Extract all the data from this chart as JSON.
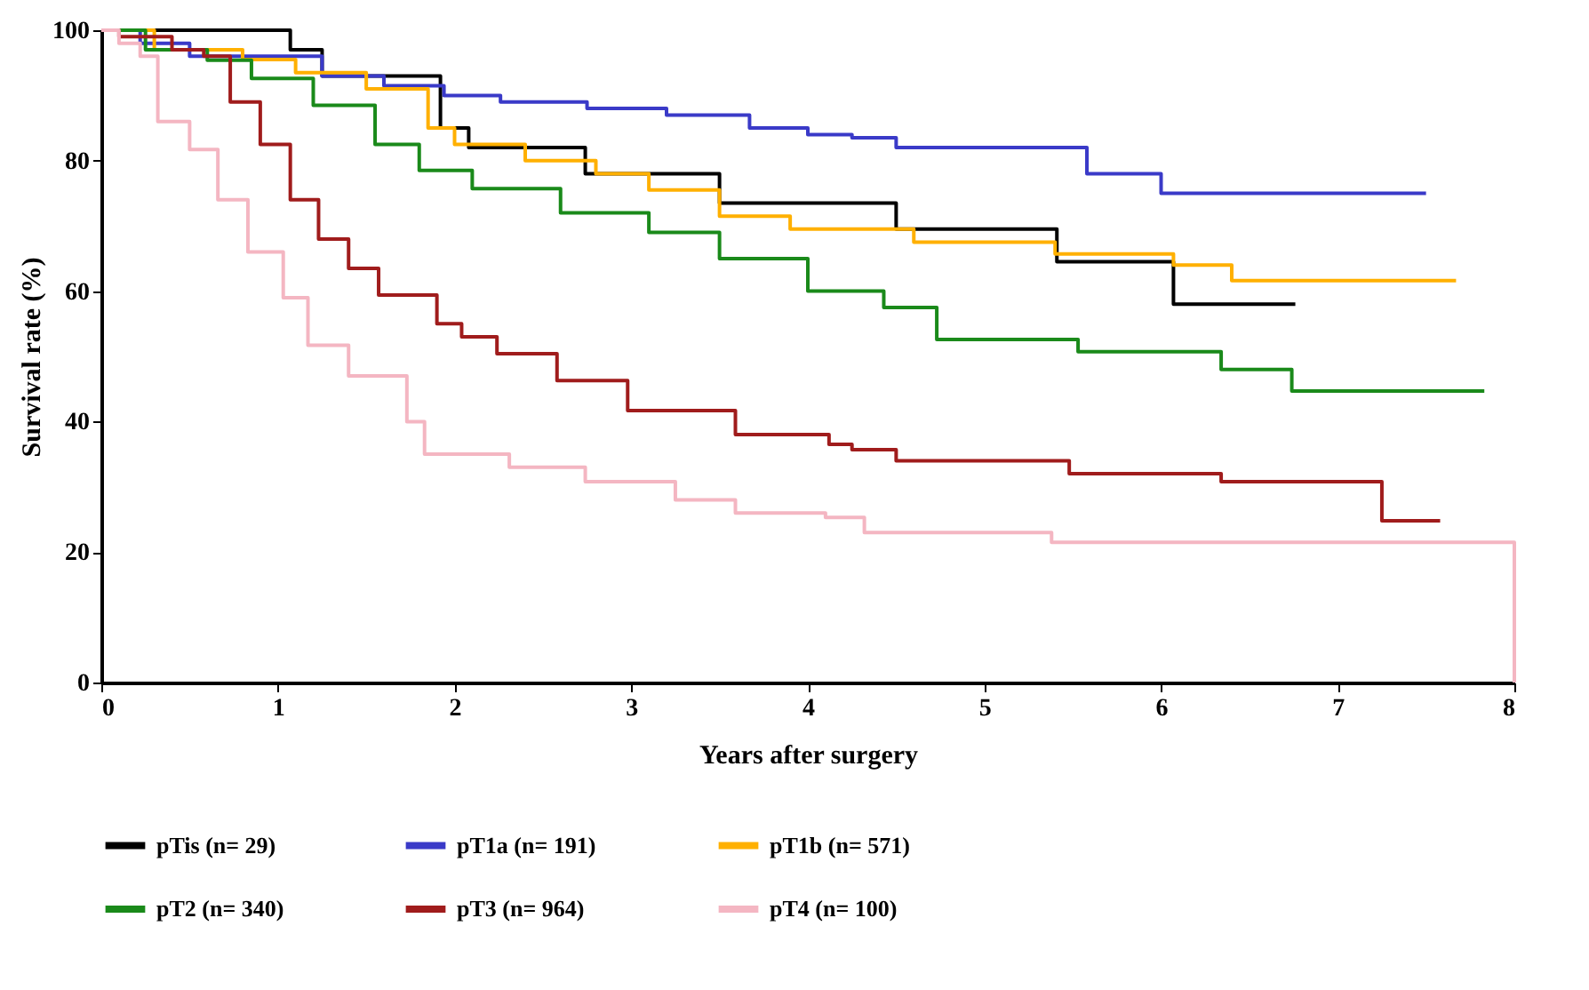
{
  "chart_data": {
    "type": "step",
    "xlabel": "Years after surgery",
    "ylabel": "Survival rate (%)",
    "xlim": [
      0,
      8
    ],
    "ylim": [
      0,
      100
    ],
    "xticks": [
      0,
      1,
      2,
      3,
      4,
      5,
      6,
      7,
      8
    ],
    "yticks": [
      0,
      20,
      40,
      60,
      80,
      100
    ],
    "grid": false,
    "legend": "bottom",
    "line_style": "solid",
    "series": [
      {
        "name": "pTis (n= 29)",
        "color": "#000000",
        "x": [
          0,
          1.07,
          1.25,
          1.92,
          2.08,
          2.74,
          3.5,
          4.5,
          5.41,
          6.07,
          6.76
        ],
        "values": [
          100,
          97,
          93,
          85,
          82,
          78,
          73.5,
          69.5,
          64.5,
          58,
          58
        ]
      },
      {
        "name": "pT1a (n= 191)",
        "color": "#3a3ac8",
        "x": [
          0,
          0.22,
          0.5,
          1.25,
          1.6,
          1.94,
          2.26,
          2.75,
          3.2,
          3.67,
          4.0,
          4.25,
          4.5,
          5.58,
          6.0,
          7.5
        ],
        "values": [
          100,
          98,
          96,
          93,
          91.5,
          90,
          89,
          88,
          87,
          85,
          84,
          83.5,
          82,
          78,
          75,
          75
        ]
      },
      {
        "name": "pT1b (n= 571)",
        "color": "#ffb000",
        "x": [
          0,
          0.3,
          0.8,
          1.1,
          1.5,
          1.85,
          2.0,
          2.4,
          2.8,
          3.1,
          3.5,
          3.9,
          4.6,
          5.4,
          6.07,
          6.4,
          7.67
        ],
        "values": [
          100,
          97,
          95.5,
          93.5,
          91,
          85,
          82.5,
          80,
          78,
          75.5,
          71.5,
          69.5,
          67.5,
          65.7,
          64,
          61.6,
          61.6
        ]
      },
      {
        "name": "pT2 (n= 340)",
        "color": "#1a8a1a",
        "x": [
          0,
          0.25,
          0.6,
          0.85,
          1.2,
          1.55,
          1.8,
          2.1,
          2.6,
          3.1,
          3.5,
          4.0,
          4.43,
          4.73,
          5.53,
          6.34,
          6.74,
          7.83
        ],
        "values": [
          100,
          97,
          95.4,
          92.6,
          88.5,
          82.5,
          78.5,
          75.7,
          72,
          69,
          65,
          60,
          57.5,
          52.6,
          50.7,
          48,
          44.7,
          44.7
        ]
      },
      {
        "name": "pT3 (n= 964)",
        "color": "#a01c1c",
        "x": [
          0,
          0.1,
          0.4,
          0.58,
          0.73,
          0.9,
          1.07,
          1.23,
          1.4,
          1.57,
          1.9,
          2.04,
          2.24,
          2.58,
          2.98,
          3.59,
          4.12,
          4.25,
          4.5,
          5.48,
          6.34,
          7.25,
          7.58
        ],
        "values": [
          100,
          99,
          97,
          96,
          89,
          82.5,
          74,
          68,
          63.5,
          59.4,
          55,
          53,
          50.4,
          46.3,
          41.7,
          38,
          36.5,
          35.7,
          34,
          32,
          30.8,
          24.8,
          24.8
        ]
      },
      {
        "name": "pT4 (n= 100)",
        "color": "#f4b6c2",
        "x": [
          0,
          0.1,
          0.22,
          0.32,
          0.5,
          0.66,
          0.83,
          1.03,
          1.17,
          1.4,
          1.73,
          1.83,
          2.31,
          2.74,
          3.25,
          3.59,
          4.1,
          4.32,
          5.38,
          8.0,
          8.0
        ],
        "values": [
          100,
          98,
          96,
          86,
          81.7,
          74,
          66,
          59,
          51.7,
          47,
          40,
          35,
          33,
          30.8,
          28,
          26,
          25.3,
          23,
          21.5,
          21.5,
          0
        ]
      }
    ]
  }
}
